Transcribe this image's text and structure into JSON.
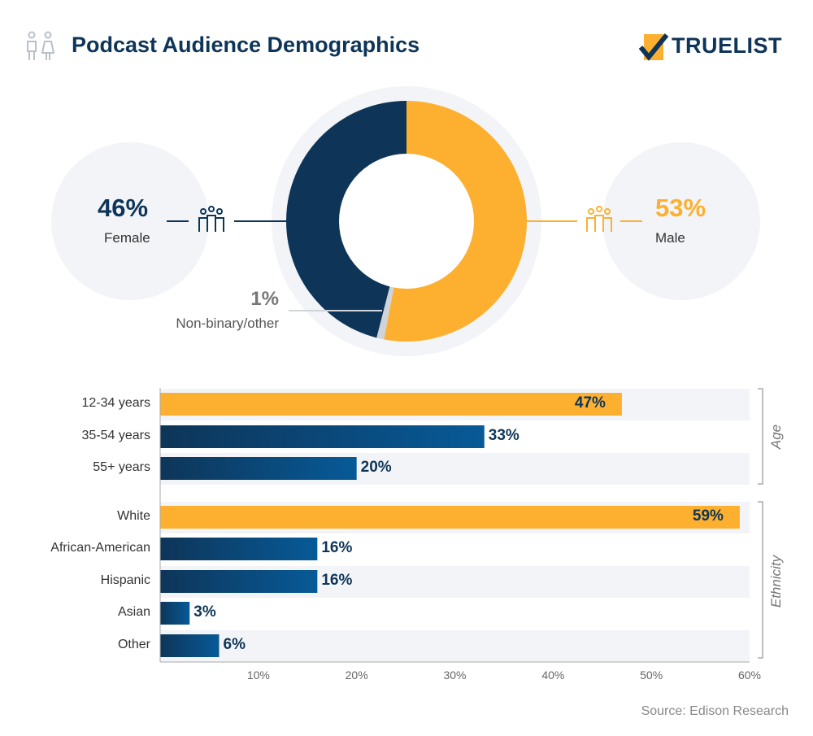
{
  "header": {
    "title": "Podcast Audience Demographics",
    "icon": "people-icon",
    "logo": "TRUELIST"
  },
  "colors": {
    "navy": "#0e3558",
    "orange": "#fdb02f",
    "blue": "#075a98",
    "track": "#f2f4f7",
    "gray": "#d0d4d9"
  },
  "chart_data": [
    {
      "type": "pie",
      "slices": [
        {
          "name": "Male",
          "value": 53,
          "label": "53%",
          "color": "#fdb02f",
          "icon": "male-group-icon"
        },
        {
          "name": "Non-binary/other",
          "value": 1,
          "label": "1%",
          "color": "#d0d4d9"
        },
        {
          "name": "Female",
          "value": 46,
          "label": "46%",
          "color": "#0e3558",
          "icon": "female-group-icon"
        }
      ]
    },
    {
      "type": "bar",
      "orientation": "horizontal",
      "xlim": [
        0,
        60
      ],
      "ticks": [
        "10%",
        "20%",
        "30%",
        "40%",
        "50%",
        "60%"
      ],
      "groups": [
        {
          "name": "Age",
          "categories": [
            "12-34 years",
            "35-54 years",
            "55+ years"
          ],
          "values": [
            47,
            33,
            20
          ],
          "labels": [
            "47%",
            "33%",
            "20%"
          ]
        },
        {
          "name": "Ethnicity",
          "categories": [
            "White",
            "African-American",
            "Hispanic",
            "Asian",
            "Other"
          ],
          "values": [
            59,
            16,
            16,
            3,
            6
          ],
          "labels": [
            "59%",
            "16%",
            "16%",
            "3%",
            "6%"
          ]
        }
      ]
    }
  ],
  "source": "Source: Edison Research"
}
